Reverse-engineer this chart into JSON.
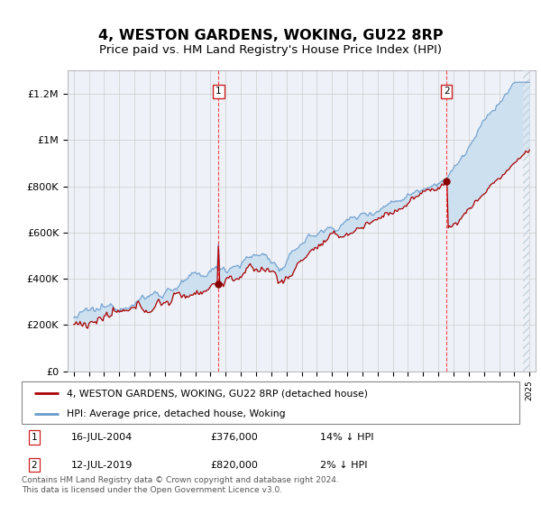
{
  "title": "4, WESTON GARDENS, WOKING, GU22 8RP",
  "subtitle": "Price paid vs. HM Land Registry's House Price Index (HPI)",
  "ylabel_ticks": [
    "£0",
    "£200K",
    "£400K",
    "£600K",
    "£800K",
    "£1M",
    "£1.2M"
  ],
  "ytick_values": [
    0,
    200000,
    400000,
    600000,
    800000,
    1000000,
    1200000
  ],
  "ylim": [
    0,
    1300000
  ],
  "xlim_start": 1994.6,
  "xlim_end": 2025.4,
  "sale1_year": 2004.54,
  "sale1_price": 376000,
  "sale2_year": 2019.54,
  "sale2_price": 820000,
  "legend_line1": "4, WESTON GARDENS, WOKING, GU22 8RP (detached house)",
  "legend_line2": "HPI: Average price, detached house, Woking",
  "footer": "Contains HM Land Registry data © Crown copyright and database right 2024.\nThis data is licensed under the Open Government Licence v3.0.",
  "line_red_color": "#aa0000",
  "line_blue_color": "#6699cc",
  "fill_color": "#cce0f0",
  "bg_color": "#eef2f8",
  "grid_color": "#cccccc",
  "hatch_start_year": 2024.5,
  "title_fontsize": 12,
  "subtitle_fontsize": 10,
  "axis_fontsize": 8
}
